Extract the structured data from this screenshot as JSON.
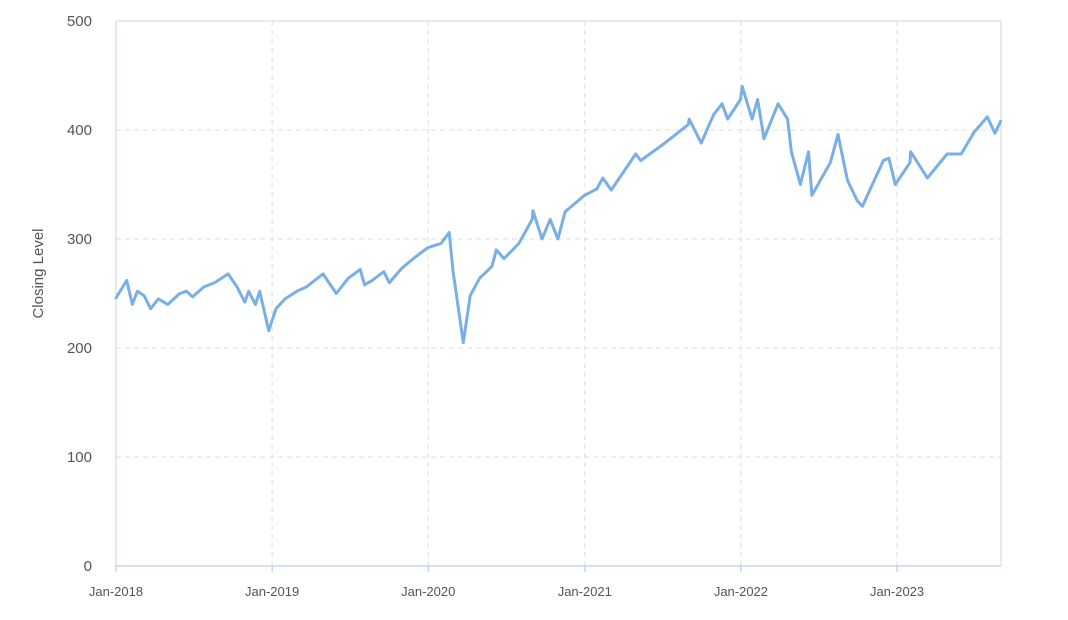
{
  "chart_data": {
    "type": "line",
    "title": "",
    "xlabel": "",
    "ylabel": "Closing Level",
    "xlim": [
      "2018-01",
      "2023-09"
    ],
    "ylim": [
      0,
      500
    ],
    "y_ticks": [
      0,
      100,
      200,
      300,
      400,
      500
    ],
    "x_ticks": [
      {
        "date": "2018-01",
        "label": "Jan-2018"
      },
      {
        "date": "2019-01",
        "label": "Jan-2019"
      },
      {
        "date": "2020-01",
        "label": "Jan-2020"
      },
      {
        "date": "2021-01",
        "label": "Jan-2021"
      },
      {
        "date": "2022-01",
        "label": "Jan-2022"
      },
      {
        "date": "2023-01",
        "label": "Jan-2023"
      }
    ],
    "grid": true,
    "line_color": "#7aafe6",
    "series": [
      {
        "points": [
          [
            "2018-01-01",
            246
          ],
          [
            "2018-01-26",
            262
          ],
          [
            "2018-02-08",
            240
          ],
          [
            "2018-02-20",
            252
          ],
          [
            "2018-03-08",
            248
          ],
          [
            "2018-03-23",
            236
          ],
          [
            "2018-04-10",
            245
          ],
          [
            "2018-05-02",
            240
          ],
          [
            "2018-05-30",
            250
          ],
          [
            "2018-06-15",
            252
          ],
          [
            "2018-06-29",
            247
          ],
          [
            "2018-07-25",
            256
          ],
          [
            "2018-08-20",
            260
          ],
          [
            "2018-09-20",
            268
          ],
          [
            "2018-10-11",
            256
          ],
          [
            "2018-10-29",
            242
          ],
          [
            "2018-11-07",
            252
          ],
          [
            "2018-11-23",
            240
          ],
          [
            "2018-12-03",
            252
          ],
          [
            "2018-12-24",
            216
          ],
          [
            "2019-01-10",
            236
          ],
          [
            "2019-01-31",
            245
          ],
          [
            "2019-02-28",
            252
          ],
          [
            "2019-03-22",
            256
          ],
          [
            "2019-04-30",
            268
          ],
          [
            "2019-05-31",
            250
          ],
          [
            "2019-06-28",
            264
          ],
          [
            "2019-07-26",
            272
          ],
          [
            "2019-08-05",
            258
          ],
          [
            "2019-08-23",
            262
          ],
          [
            "2019-09-19",
            270
          ],
          [
            "2019-10-02",
            260
          ],
          [
            "2019-10-31",
            273
          ],
          [
            "2019-11-27",
            282
          ],
          [
            "2019-12-31",
            292
          ],
          [
            "2020-01-31",
            296
          ],
          [
            "2020-02-19",
            306
          ],
          [
            "2020-02-28",
            270
          ],
          [
            "2020-03-10",
            240
          ],
          [
            "2020-03-23",
            205
          ],
          [
            "2020-04-08",
            248
          ],
          [
            "2020-04-30",
            264
          ],
          [
            "2020-05-29",
            275
          ],
          [
            "2020-06-08",
            290
          ],
          [
            "2020-06-26",
            282
          ],
          [
            "2020-07-31",
            296
          ],
          [
            "2020-08-31",
            318
          ],
          [
            "2020-09-02",
            326
          ],
          [
            "2020-09-23",
            300
          ],
          [
            "2020-10-12",
            318
          ],
          [
            "2020-10-30",
            300
          ],
          [
            "2020-11-16",
            325
          ],
          [
            "2020-12-31",
            340
          ],
          [
            "2021-01-29",
            346
          ],
          [
            "2021-02-12",
            356
          ],
          [
            "2021-03-04",
            345
          ],
          [
            "2021-04-30",
            378
          ],
          [
            "2021-05-12",
            372
          ],
          [
            "2021-06-30",
            386
          ],
          [
            "2021-07-30",
            395
          ],
          [
            "2021-08-31",
            405
          ],
          [
            "2021-09-02",
            410
          ],
          [
            "2021-09-30",
            388
          ],
          [
            "2021-10-29",
            414
          ],
          [
            "2021-11-18",
            424
          ],
          [
            "2021-12-01",
            410
          ],
          [
            "2021-12-31",
            428
          ],
          [
            "2022-01-04",
            440
          ],
          [
            "2022-01-27",
            410
          ],
          [
            "2022-02-09",
            428
          ],
          [
            "2022-02-24",
            392
          ],
          [
            "2022-03-29",
            424
          ],
          [
            "2022-04-20",
            410
          ],
          [
            "2022-04-29",
            380
          ],
          [
            "2022-05-20",
            350
          ],
          [
            "2022-06-08",
            380
          ],
          [
            "2022-06-16",
            340
          ],
          [
            "2022-07-29",
            370
          ],
          [
            "2022-08-16",
            396
          ],
          [
            "2022-09-07",
            354
          ],
          [
            "2022-09-30",
            335
          ],
          [
            "2022-10-12",
            330
          ],
          [
            "2022-11-30",
            372
          ],
          [
            "2022-12-13",
            374
          ],
          [
            "2022-12-28",
            350
          ],
          [
            "2023-01-31",
            370
          ],
          [
            "2023-02-02",
            380
          ],
          [
            "2023-03-13",
            356
          ],
          [
            "2023-04-28",
            378
          ],
          [
            "2023-05-31",
            378
          ],
          [
            "2023-06-30",
            398
          ],
          [
            "2023-07-31",
            412
          ],
          [
            "2023-08-18",
            397
          ],
          [
            "2023-08-31",
            408
          ]
        ]
      }
    ]
  }
}
